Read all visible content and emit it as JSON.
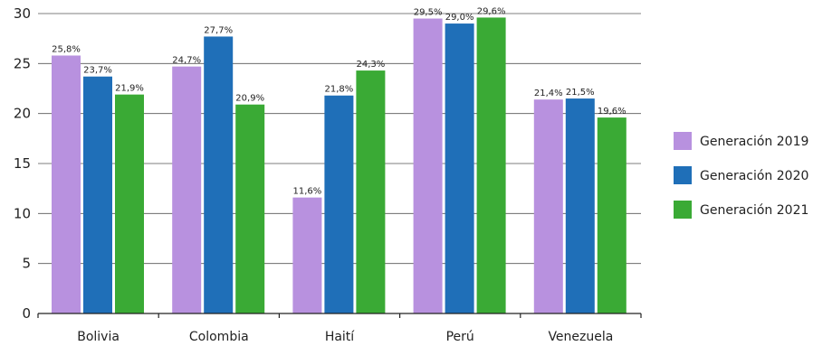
{
  "chart_data": {
    "type": "bar",
    "categories": [
      "Bolivia",
      "Colombia",
      "Haití",
      "Perú",
      "Venezuela"
    ],
    "series": [
      {
        "name": "Generación 2019",
        "color": "#b891df",
        "values": [
          25.8,
          24.7,
          11.6,
          29.5,
          21.4
        ],
        "labels": [
          "25,8%",
          "24,7%",
          "11,6%",
          "29,5%",
          "21,4%"
        ]
      },
      {
        "name": "Generación 2020",
        "color": "#1f6fb8",
        "values": [
          23.7,
          27.7,
          21.8,
          29.0,
          21.5
        ],
        "labels": [
          "23,7%",
          "27,7%",
          "21,8%",
          "29,0%",
          "21,5%"
        ]
      },
      {
        "name": "Generación 2021",
        "color": "#3aaa35",
        "values": [
          21.9,
          20.9,
          24.3,
          29.6,
          19.6
        ],
        "labels": [
          "21,9%",
          "20,9%",
          "24,3%",
          "29,6%",
          "19,6%"
        ]
      }
    ],
    "yticks": [
      "0",
      "5",
      "10",
      "15",
      "20",
      "25",
      "30"
    ],
    "ylim": [
      0,
      30
    ],
    "grid": true,
    "legend_position": "right"
  }
}
